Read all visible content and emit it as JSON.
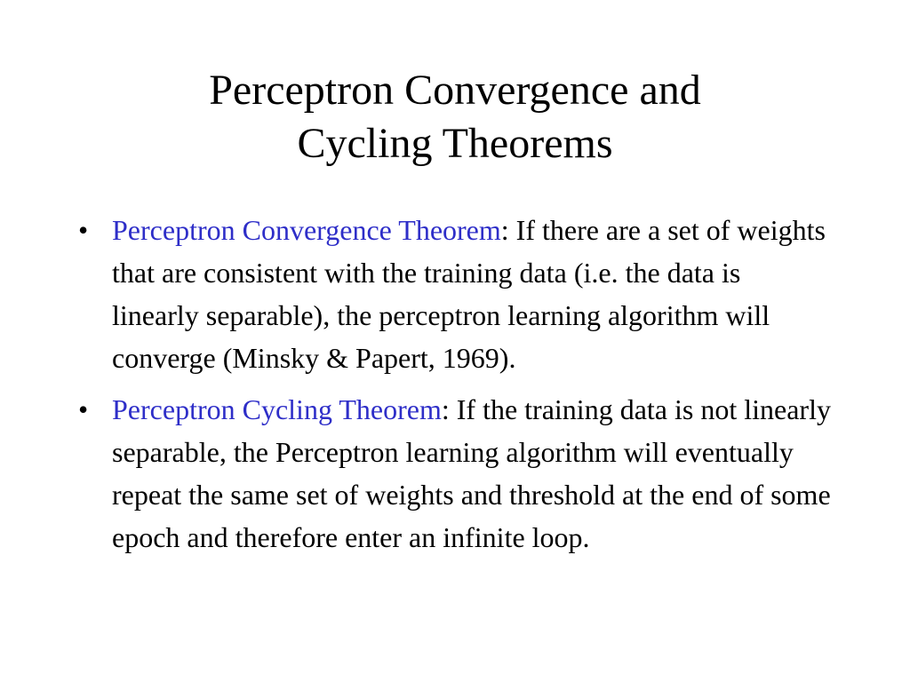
{
  "slide": {
    "title_lines": [
      "Perceptron Convergence and",
      "Cycling Theorems"
    ],
    "bullets": [
      {
        "marker": "•",
        "term": "Perceptron Convergence Theorem",
        "text": ": If there are a set of weights that are consistent with the training data (i.e. the data is linearly separable), the perceptron learning algorithm will converge (Minsky & Papert, 1969)."
      },
      {
        "marker": "•",
        "term": "Perceptron Cycling Theorem",
        "text": ": If the training data is not linearly separable, the Perceptron learning algorithm will eventually repeat the same set of weights and threshold at the end of some epoch and therefore enter an infinite loop."
      }
    ],
    "colors": {
      "term": "#2e2ec8",
      "text": "#000000",
      "background": "#ffffff"
    }
  }
}
